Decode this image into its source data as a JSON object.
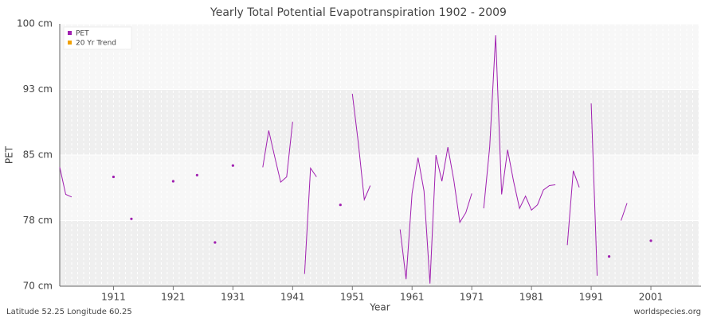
{
  "chart_data": {
    "type": "line",
    "title": "Yearly Total Potential Evapotranspiration 1902 - 2009",
    "x_label": "Year",
    "y_label": "PET",
    "footer_left": "Latitude 52.25 Longitude 60.25",
    "footer_right": "worldspecies.org",
    "legend_position": "upper left",
    "grid": true,
    "xlim": [
      1902,
      2009
    ],
    "xticks": [
      1911,
      1921,
      1931,
      1941,
      1951,
      1961,
      1971,
      1981,
      1991,
      2001
    ],
    "ylim": [
      70,
      100
    ],
    "yticks": [
      {
        "value": 70,
        "label": "70 cm"
      },
      {
        "value": 77.5,
        "label": "78 cm"
      },
      {
        "value": 85,
        "label": "85 cm"
      },
      {
        "value": 92.5,
        "label": "93 cm"
      },
      {
        "value": 100,
        "label": "100 cm"
      }
    ],
    "x": [
      1902,
      1903,
      1904,
      1905,
      1906,
      1907,
      1908,
      1909,
      1910,
      1911,
      1912,
      1913,
      1914,
      1915,
      1916,
      1917,
      1918,
      1919,
      1920,
      1921,
      1922,
      1923,
      1924,
      1925,
      1926,
      1927,
      1928,
      1929,
      1930,
      1931,
      1932,
      1933,
      1934,
      1935,
      1936,
      1937,
      1938,
      1939,
      1940,
      1941,
      1942,
      1943,
      1944,
      1945,
      1946,
      1947,
      1948,
      1949,
      1950,
      1951,
      1952,
      1953,
      1954,
      1955,
      1956,
      1957,
      1958,
      1959,
      1960,
      1961,
      1962,
      1963,
      1964,
      1965,
      1966,
      1967,
      1968,
      1969,
      1970,
      1971,
      1972,
      1973,
      1974,
      1975,
      1976,
      1977,
      1978,
      1979,
      1980,
      1981,
      1982,
      1983,
      1984,
      1985,
      1986,
      1987,
      1988,
      1989,
      1990,
      1991,
      1992,
      1993,
      1994,
      1995,
      1996,
      1997,
      1998,
      1999,
      2000,
      2001,
      2002,
      2003,
      2004,
      2005,
      2006,
      2007,
      2008,
      2009
    ],
    "series": [
      {
        "name": "PET",
        "color": "#a020b0",
        "values": [
          83.6,
          80.5,
          80.2,
          null,
          null,
          null,
          null,
          null,
          null,
          82.5,
          null,
          null,
          77.7,
          null,
          null,
          null,
          null,
          null,
          null,
          82.0,
          null,
          null,
          null,
          82.7,
          null,
          null,
          75.0,
          null,
          null,
          83.8,
          null,
          null,
          null,
          null,
          83.6,
          87.8,
          84.8,
          81.9,
          82.5,
          88.8,
          null,
          71.4,
          83.5,
          82.5,
          null,
          null,
          null,
          79.3,
          null,
          92.0,
          86.4,
          79.9,
          81.5,
          null,
          null,
          null,
          null,
          76.5,
          70.8,
          80.6,
          84.7,
          80.9,
          70.3,
          85.0,
          82.0,
          85.9,
          82.1,
          77.3,
          78.4,
          80.6,
          null,
          78.9,
          85.9,
          98.7,
          80.5,
          85.6,
          82.0,
          78.9,
          80.3,
          78.7,
          79.3,
          81.0,
          81.5,
          81.6,
          null,
          74.7,
          83.2,
          81.3,
          null,
          90.9,
          71.2,
          null,
          73.4,
          null,
          77.5,
          79.5,
          null,
          null,
          null,
          75.2,
          null,
          null,
          null,
          null,
          null,
          null,
          null,
          null
        ]
      },
      {
        "name": "20 Yr Trend",
        "color": "#f0a000",
        "values": [
          null,
          null,
          null,
          null,
          null,
          null,
          null,
          null,
          null,
          null,
          null,
          null,
          null,
          null,
          null,
          null,
          null,
          null,
          null,
          null,
          null,
          null,
          null,
          null,
          null,
          null,
          null,
          null,
          null,
          null,
          null,
          null,
          null,
          null,
          null,
          null,
          null,
          null,
          null,
          null,
          null,
          null,
          null,
          null,
          null,
          null,
          null,
          null,
          null,
          null,
          null,
          null,
          null,
          null,
          null,
          null,
          null,
          null,
          null,
          null,
          null,
          null,
          null,
          null,
          null,
          null,
          null,
          null,
          null,
          null,
          null,
          null,
          null,
          null,
          null,
          null,
          null,
          null,
          null,
          null,
          null,
          null,
          null,
          null,
          null,
          null,
          null,
          null,
          null,
          null,
          null,
          null,
          null,
          null,
          null,
          null,
          null,
          null,
          null,
          null,
          null,
          null,
          null,
          null,
          null,
          null,
          null,
          null
        ]
      }
    ]
  }
}
